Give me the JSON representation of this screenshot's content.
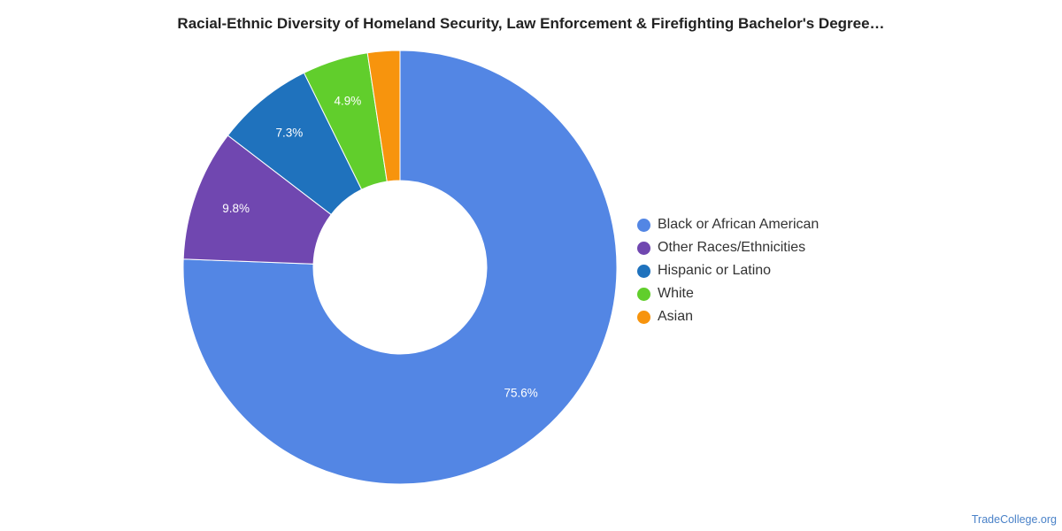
{
  "chart_data": {
    "type": "pie",
    "title": "Racial-Ethnic Diversity of Homeland Security, Law Enforcement & Firefighting Bachelor's Degree…",
    "donut": true,
    "legend_position": "right",
    "slices": [
      {
        "name": "Black or African American",
        "value": 75.6,
        "label": "75.6%",
        "color": "#5386E4"
      },
      {
        "name": "Other Races/Ethnicities",
        "value": 9.8,
        "label": "9.8%",
        "color": "#7047B0"
      },
      {
        "name": "Hispanic or Latino",
        "value": 7.3,
        "label": "7.3%",
        "color": "#1F72BD"
      },
      {
        "name": "White",
        "value": 4.9,
        "label": "4.9%",
        "color": "#61CE2C"
      },
      {
        "name": "Asian",
        "value": 2.4,
        "label": "",
        "color": "#F7940D"
      }
    ]
  },
  "watermark": "TradeCollege.org"
}
